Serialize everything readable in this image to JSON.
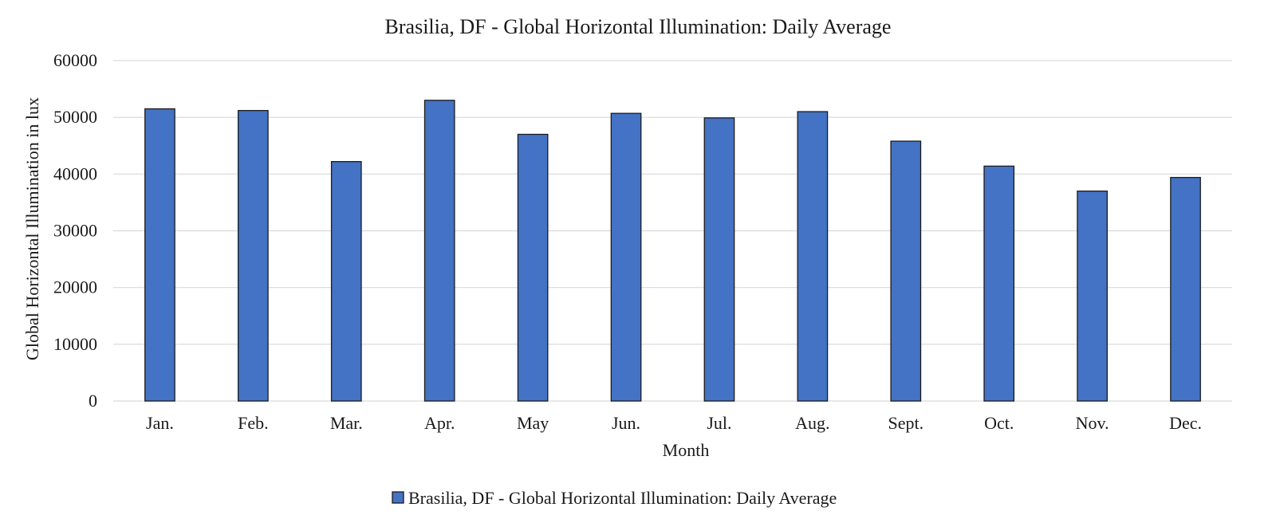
{
  "chart_data": {
    "type": "bar",
    "title": "Brasilia, DF - Global Horizontal Illumination: Daily Average",
    "xlabel": "Month",
    "ylabel": "Global Horizontal Illumination in lux",
    "categories": [
      "Jan.",
      "Feb.",
      "Mar.",
      "Apr.",
      "May",
      "Jun.",
      "Jul.",
      "Aug.",
      "Sept.",
      "Oct.",
      "Nov.",
      "Dec."
    ],
    "series": [
      {
        "name": "Brasilia, DF - Global Horizontal Illumination: Daily Average",
        "color": "#4472c4",
        "values": [
          51500,
          51200,
          42200,
          53000,
          47000,
          50700,
          49900,
          51000,
          45800,
          41400,
          37000,
          39400
        ]
      }
    ],
    "ylim": [
      0,
      60000
    ],
    "yticks": [
      0,
      10000,
      20000,
      30000,
      40000,
      50000,
      60000
    ],
    "grid": true,
    "legend_position": "bottom"
  }
}
